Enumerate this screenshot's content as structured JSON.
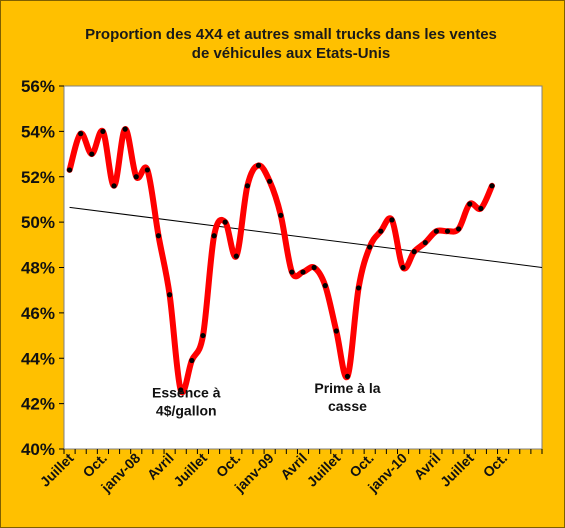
{
  "chart_data": {
    "type": "line",
    "title": "Proportion des 4X4 et autres  small trucks  dans les ventes\nde véhicules aux Etats-Unis",
    "xlabel": "",
    "ylabel": "",
    "ylim": [
      40,
      56
    ],
    "y_ticks": [
      "56%",
      "54%",
      "52%",
      "50%",
      "48%",
      "46%",
      "44%",
      "42%",
      "40%"
    ],
    "y_tick_values": [
      56,
      54,
      52,
      50,
      48,
      46,
      44,
      42,
      40
    ],
    "x_tick_labels": [
      "Juillet",
      "Oct.",
      "janv-08",
      "Avril",
      "Juillet",
      "Oct.",
      "janv-09",
      "Avril",
      "Juillet",
      "Oct.",
      "janv-10",
      "Avril",
      "Juillet",
      "Oct."
    ],
    "x_tick_index": [
      0,
      3,
      6,
      9,
      12,
      15,
      18,
      21,
      24,
      27,
      30,
      33,
      36,
      39
    ],
    "x_count": 43,
    "series": [
      {
        "color": "#ff0000",
        "marker_color": "#000000",
        "values": [
          52.3,
          53.9,
          53.0,
          54.0,
          51.6,
          54.1,
          52.0,
          52.3,
          49.4,
          46.8,
          42.6,
          43.9,
          45.0,
          49.4,
          50.0,
          48.5,
          51.6,
          52.5,
          51.8,
          50.3,
          47.8,
          47.8,
          48.0,
          47.2,
          45.2,
          43.2,
          47.1,
          48.9,
          49.6,
          50.1,
          48.0,
          48.7,
          49.1,
          49.6,
          49.6,
          49.7,
          50.8,
          50.6,
          51.6
        ]
      }
    ],
    "trendline": {
      "color": "#000000",
      "start": 50.65,
      "end": 48.0
    },
    "annotations": [
      {
        "lines": [
          "Essence à",
          "4$/gallon"
        ],
        "x_index": 10.5,
        "y": 41.3
      },
      {
        "lines": [
          "Prime à la",
          "casse"
        ],
        "x_index": 25.0,
        "y": 41.5
      }
    ],
    "plot_background": "#ffffff",
    "frame_background": "#ffc000"
  }
}
